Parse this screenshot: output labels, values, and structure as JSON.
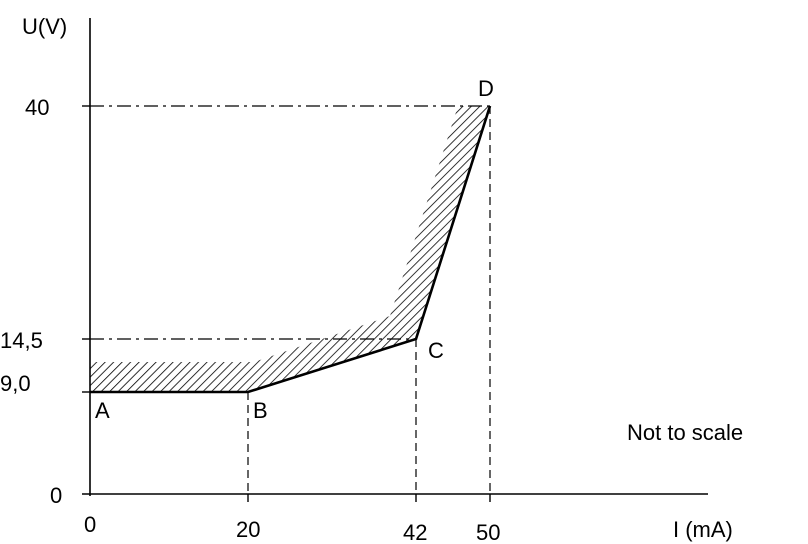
{
  "chart_data": {
    "type": "line",
    "ylabel": "U(V)",
    "xlabel": "I (mA)",
    "annotation": "Not to scale",
    "x_ticks": [
      "0",
      "20",
      "42",
      "50"
    ],
    "y_ticks": [
      "0",
      "9,0",
      "14,5",
      "40"
    ],
    "points": [
      {
        "label": "A",
        "x": 0,
        "y": 9.0
      },
      {
        "label": "B",
        "x": 20,
        "y": 9.0
      },
      {
        "label": "C",
        "x": 42,
        "y": 14.5
      },
      {
        "label": "D",
        "x": 50,
        "y": 40
      }
    ],
    "tolerance_band": "hatched",
    "colors": {
      "line": "#000000",
      "hatch": "#000000",
      "background": "#ffffff"
    }
  }
}
